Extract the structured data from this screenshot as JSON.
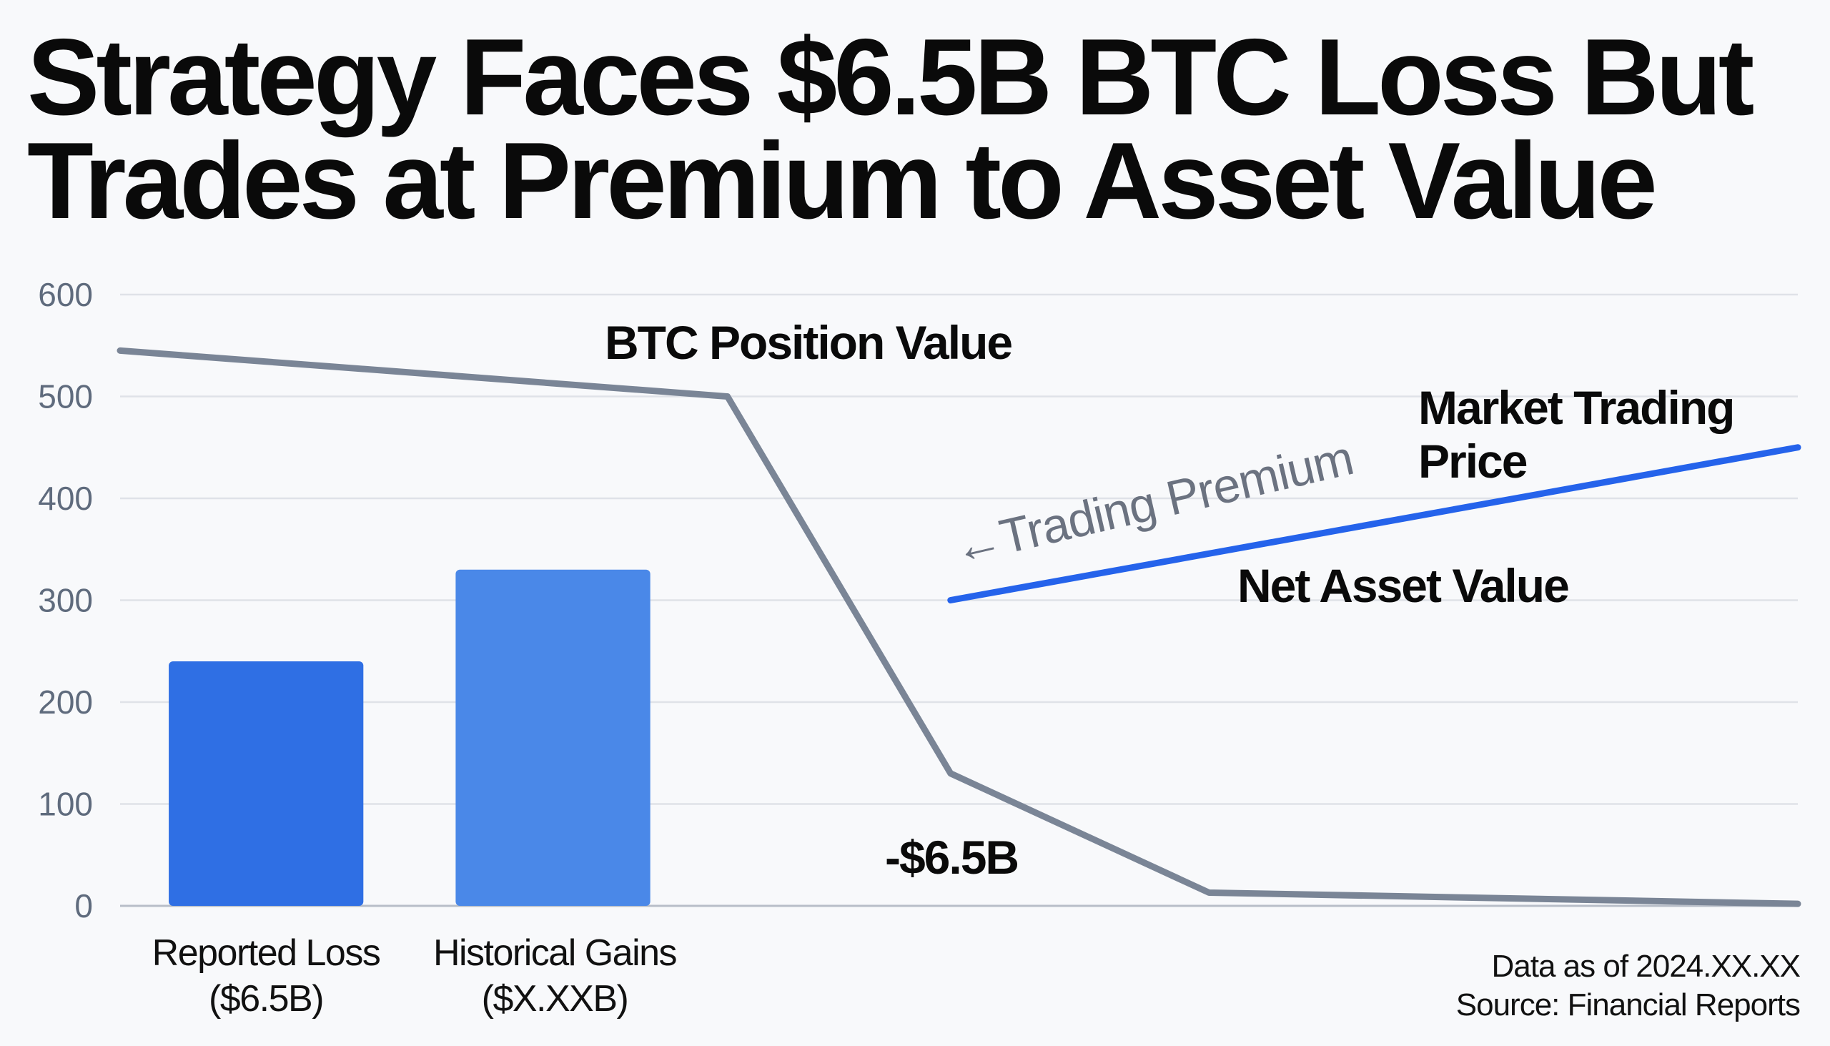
{
  "chart_data": {
    "type": "bar+line",
    "title": [
      "Strategy Faces $6.5B BTC Loss But",
      "Trades at Premium to Asset Value"
    ],
    "ylim": [
      0,
      600
    ],
    "yticks": [
      "0",
      "100",
      "200",
      "300",
      "400",
      "500",
      "600"
    ],
    "ytick_values": [
      0,
      100,
      200,
      300,
      400,
      500,
      600
    ],
    "xlim": [
      0,
      100
    ],
    "grid": true,
    "bars": [
      {
        "label_line1": "Reported Loss",
        "label_line2": "($6.5B)",
        "x": 8.7,
        "value": 240,
        "color": "#2f6fe4"
      },
      {
        "label_line1": "Historical Gains",
        "label_line2": "($X.XXB)",
        "x": 25.8,
        "value": 330,
        "color": "#4a88e8"
      }
    ],
    "bar_width": 11.6,
    "series": [
      {
        "name": "BTC Position Value",
        "color": "#7a8596",
        "x": [
          0,
          36.2,
          49.5,
          64.9,
          100
        ],
        "y": [
          545,
          500,
          130,
          13,
          2
        ]
      },
      {
        "name": "Market Trading Price vs Net Asset Value",
        "color": "#2563eb",
        "x": [
          49.5,
          100
        ],
        "y": [
          300,
          450
        ]
      }
    ],
    "annotations": {
      "btc_position": "BTC Position Value",
      "market_price_1": "Market Trading",
      "market_price_2": "Price",
      "nav": "Net Asset Value",
      "premium": "←Trading Premium",
      "loss": "-$6.5B"
    },
    "footer": {
      "date": "Data as of 2024.XX.XX",
      "source": "Source: Financial Reports"
    }
  }
}
